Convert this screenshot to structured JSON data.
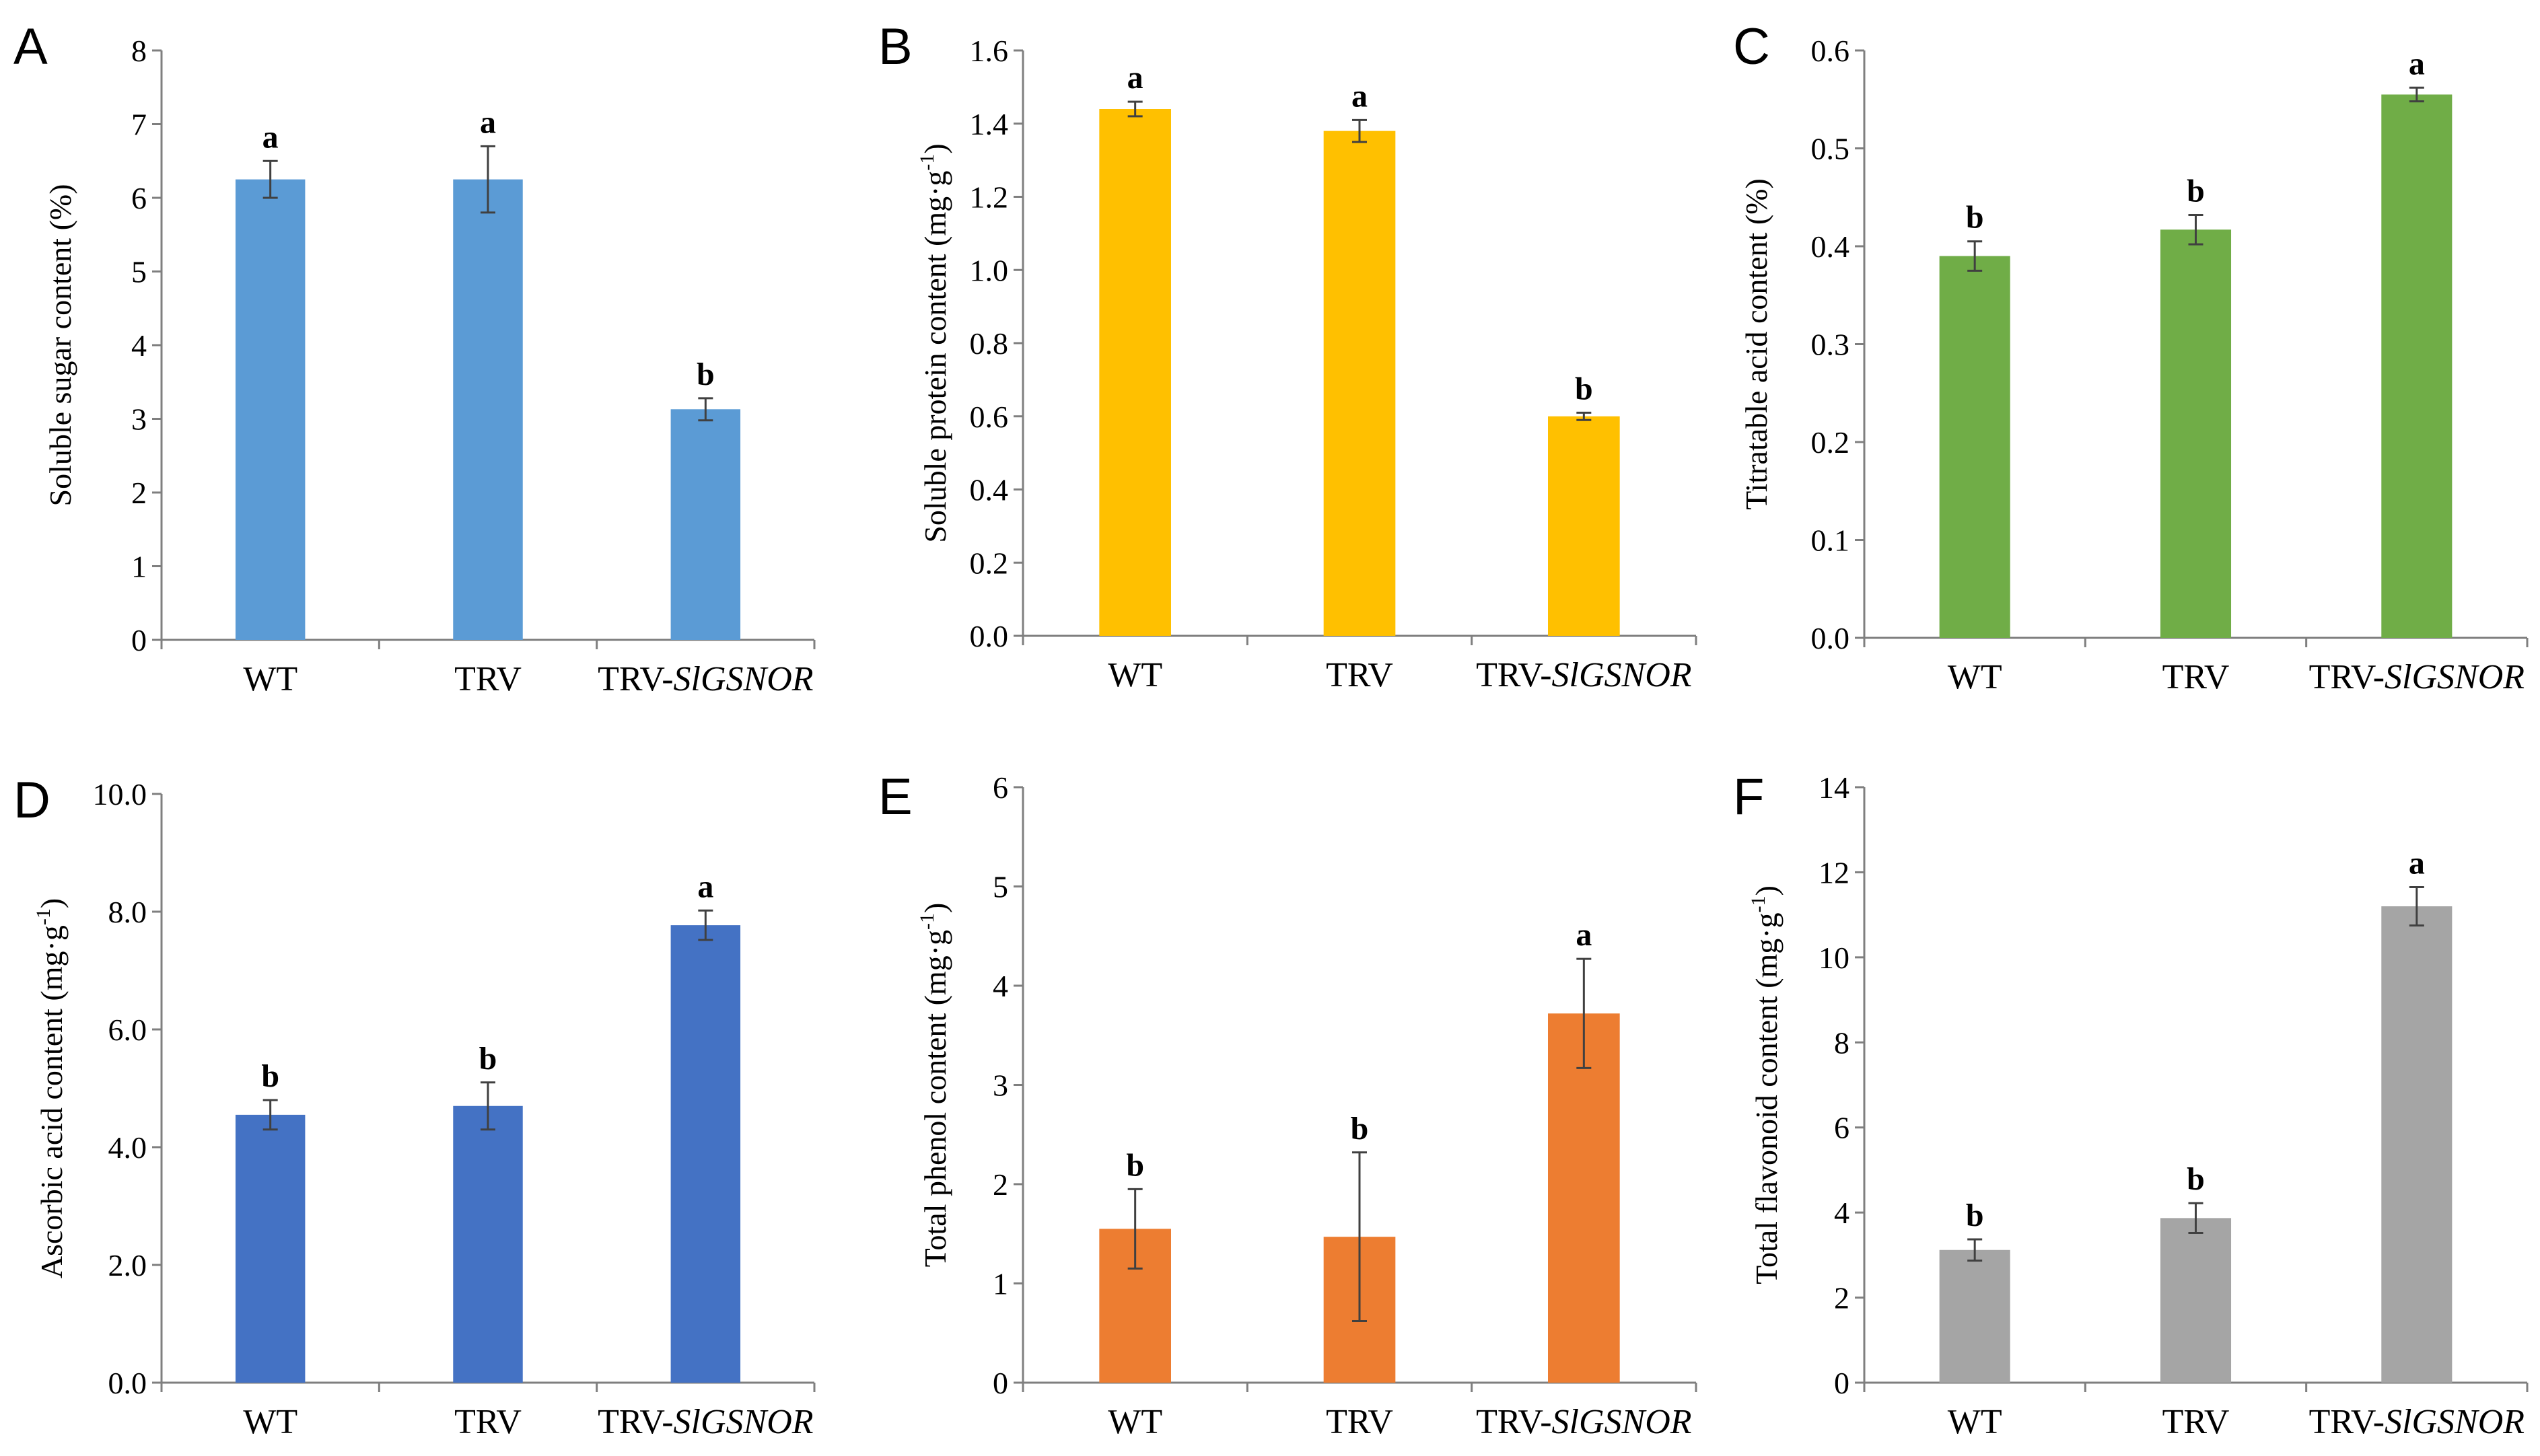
{
  "chart_data": [
    {
      "type": "bar",
      "panel": "A",
      "title": "",
      "xlabel": "",
      "ylabel": "Soluble  sugar  content  (%)",
      "categories": [
        "WT",
        "TRV",
        "TRV-SlGSNOR"
      ],
      "values": [
        6.25,
        6.25,
        3.13
      ],
      "errors": [
        0.25,
        0.45,
        0.15
      ],
      "significance": [
        "a",
        "a",
        "b"
      ],
      "color": "#5B9BD5",
      "ylim": [
        0,
        8
      ],
      "yticks": [
        "0",
        "1",
        "2",
        "3",
        "4",
        "5",
        "6",
        "7",
        "8"
      ]
    },
    {
      "type": "bar",
      "panel": "B",
      "title": "",
      "xlabel": "",
      "ylabel": "Soluble  protein  content  (mg·g",
      "ylabel_sup": "-1",
      "ylabel_end": ")",
      "categories": [
        "WT",
        "TRV",
        "TRV-SlGSNOR"
      ],
      "values": [
        1.44,
        1.38,
        0.6
      ],
      "errors": [
        0.02,
        0.03,
        0.01
      ],
      "significance": [
        "a",
        "a",
        "b"
      ],
      "color": "#FFC000",
      "ylim": [
        0,
        1.6
      ],
      "yticks": [
        "0.0",
        "0.2",
        "0.4",
        "0.6",
        "0.8",
        "1.0",
        "1.2",
        "1.4",
        "1.6"
      ]
    },
    {
      "type": "bar",
      "panel": "C",
      "title": "",
      "xlabel": "",
      "ylabel": "Titratable  acid  content  (%)",
      "categories": [
        "WT",
        "TRV",
        "TRV-SlGSNOR"
      ],
      "values": [
        0.39,
        0.417,
        0.555
      ],
      "errors": [
        0.015,
        0.015,
        0.007
      ],
      "significance": [
        "b",
        "b",
        "a"
      ],
      "color": "#70AD47",
      "ylim": [
        0,
        0.6
      ],
      "yticks": [
        "0.0",
        "0.1",
        "0.2",
        "0.3",
        "0.4",
        "0.5",
        "0.6"
      ]
    },
    {
      "type": "bar",
      "panel": "D",
      "title": "",
      "xlabel": "",
      "ylabel": "Ascorbic  acid  content  (mg·g",
      "ylabel_sup": "-1",
      "ylabel_end": ")",
      "categories": [
        "WT",
        "TRV",
        "TRV-SlGSNOR"
      ],
      "values": [
        4.55,
        4.7,
        7.77
      ],
      "errors": [
        0.25,
        0.4,
        0.25
      ],
      "significance": [
        "b",
        "b",
        "a"
      ],
      "color": "#4472C4",
      "ylim": [
        0,
        10
      ],
      "yticks": [
        "0.0",
        "2.0",
        "4.0",
        "6.0",
        "8.0",
        "10.0"
      ]
    },
    {
      "type": "bar",
      "panel": "E",
      "title": "",
      "xlabel": "",
      "ylabel": "Total  phenol  content  (mg·g",
      "ylabel_sup": "-1",
      "ylabel_end": ")",
      "categories": [
        "WT",
        "TRV",
        "TRV-SlGSNOR"
      ],
      "values": [
        1.55,
        1.47,
        3.72
      ],
      "errors": [
        0.4,
        0.85,
        0.55
      ],
      "significance": [
        "b",
        "b",
        "a"
      ],
      "color": "#ED7D31",
      "ylim": [
        0,
        6
      ],
      "yticks": [
        "0",
        "1",
        "2",
        "3",
        "4",
        "5",
        "6"
      ]
    },
    {
      "type": "bar",
      "panel": "F",
      "title": "",
      "xlabel": "",
      "ylabel": "Total  flavonoid  content  (mg·g",
      "ylabel_sup": "-1",
      "ylabel_end": ")",
      "categories": [
        "WT",
        "TRV",
        "TRV-SlGSNOR"
      ],
      "values": [
        3.12,
        3.87,
        11.2
      ],
      "errors": [
        0.25,
        0.35,
        0.45
      ],
      "significance": [
        "b",
        "b",
        "a"
      ],
      "color": "#A5A5A5",
      "ylim": [
        0,
        14
      ],
      "yticks": [
        "0",
        "2",
        "4",
        "6",
        "8",
        "10",
        "12",
        "14"
      ]
    }
  ]
}
